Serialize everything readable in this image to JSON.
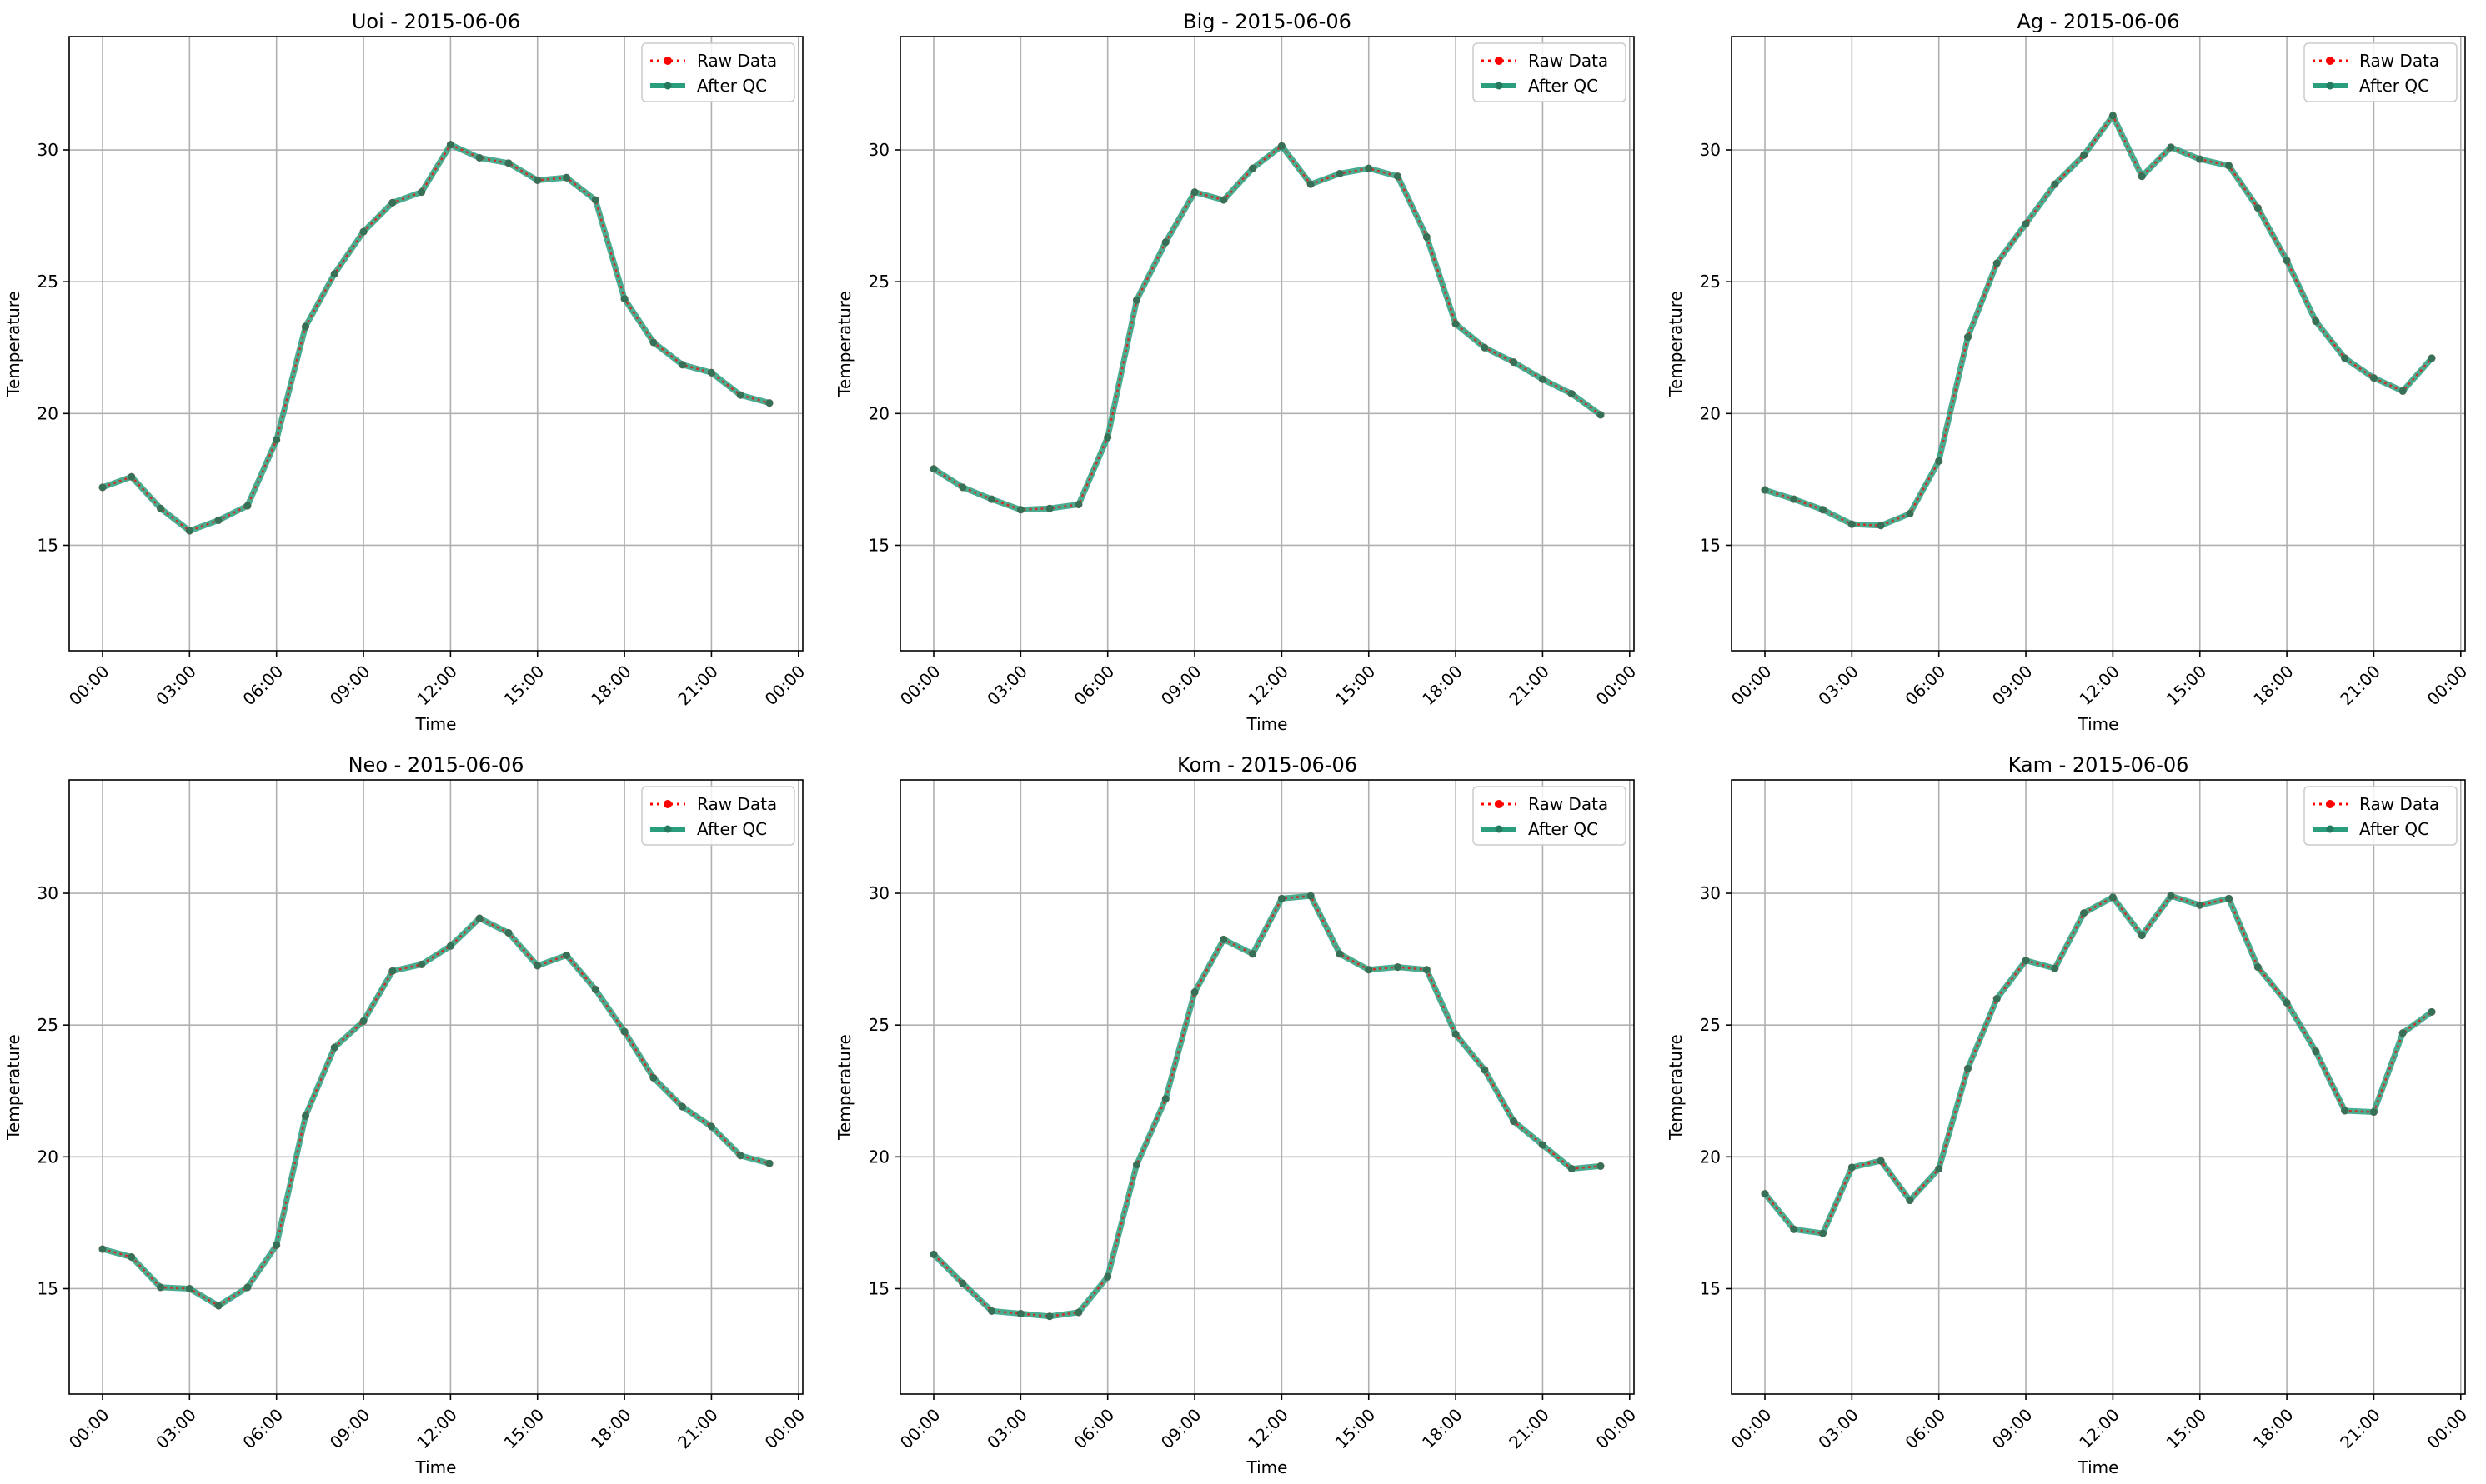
{
  "colors": {
    "raw": "#ff0000",
    "qc": "#2a9d7c",
    "grid": "#b0b0b0",
    "axes": "#000000"
  },
  "legend": {
    "raw_label": "Raw Data",
    "qc_label": "After QC",
    "placement": "upper right"
  },
  "chart_data": [
    {
      "type": "line",
      "title": "Uoi - 2015-06-06",
      "xlabel": "Time",
      "ylabel": "Temperature",
      "x": [
        "00:00",
        "01:00",
        "02:00",
        "03:00",
        "04:00",
        "05:00",
        "06:00",
        "07:00",
        "08:00",
        "09:00",
        "10:00",
        "11:00",
        "12:00",
        "13:00",
        "14:00",
        "15:00",
        "16:00",
        "17:00",
        "18:00",
        "19:00",
        "20:00",
        "21:00",
        "22:00",
        "23:00"
      ],
      "xticks": [
        "00:00",
        "03:00",
        "06:00",
        "09:00",
        "12:00",
        "15:00",
        "18:00",
        "21:00",
        "00:00"
      ],
      "yticks": [
        15,
        20,
        25,
        30
      ],
      "ylim": [
        11,
        34.3
      ],
      "grid": true,
      "series": [
        {
          "name": "Raw Data",
          "values": [
            17.2,
            17.6,
            16.4,
            15.55,
            15.95,
            16.5,
            19.0,
            23.3,
            25.3,
            26.9,
            28.0,
            28.4,
            30.2,
            29.7,
            29.5,
            28.85,
            28.95,
            28.1,
            24.35,
            22.7,
            21.85,
            21.55,
            20.7,
            20.4
          ]
        },
        {
          "name": "After QC",
          "values": [
            17.2,
            17.6,
            16.4,
            15.55,
            15.95,
            16.5,
            19.0,
            23.3,
            25.3,
            26.9,
            28.0,
            28.4,
            30.2,
            29.7,
            29.5,
            28.85,
            28.95,
            28.1,
            24.35,
            22.7,
            21.85,
            21.55,
            20.7,
            20.4
          ]
        }
      ]
    },
    {
      "type": "line",
      "title": "Big - 2015-06-06",
      "xlabel": "Time",
      "ylabel": "Temperature",
      "x": [
        "00:00",
        "01:00",
        "02:00",
        "03:00",
        "04:00",
        "05:00",
        "06:00",
        "07:00",
        "08:00",
        "09:00",
        "10:00",
        "11:00",
        "12:00",
        "13:00",
        "14:00",
        "15:00",
        "16:00",
        "17:00",
        "18:00",
        "19:00",
        "20:00",
        "21:00",
        "22:00",
        "23:00"
      ],
      "xticks": [
        "00:00",
        "03:00",
        "06:00",
        "09:00",
        "12:00",
        "15:00",
        "18:00",
        "21:00",
        "00:00"
      ],
      "yticks": [
        15,
        20,
        25,
        30
      ],
      "ylim": [
        11,
        34.3
      ],
      "grid": true,
      "series": [
        {
          "name": "Raw Data",
          "values": [
            17.9,
            17.2,
            16.75,
            16.35,
            16.4,
            16.55,
            19.1,
            24.3,
            26.5,
            28.4,
            28.1,
            29.3,
            30.15,
            28.7,
            29.1,
            29.3,
            29.0,
            26.7,
            23.4,
            22.5,
            21.95,
            21.3,
            20.75,
            19.95
          ]
        },
        {
          "name": "After QC",
          "values": [
            17.9,
            17.2,
            16.75,
            16.35,
            16.4,
            16.55,
            19.1,
            24.3,
            26.5,
            28.4,
            28.1,
            29.3,
            30.15,
            28.7,
            29.1,
            29.3,
            29.0,
            26.7,
            23.4,
            22.5,
            21.95,
            21.3,
            20.75,
            19.95
          ]
        }
      ]
    },
    {
      "type": "line",
      "title": "Ag - 2015-06-06",
      "xlabel": "Time",
      "ylabel": "Temperature",
      "x": [
        "00:00",
        "01:00",
        "02:00",
        "03:00",
        "04:00",
        "05:00",
        "06:00",
        "07:00",
        "08:00",
        "09:00",
        "10:00",
        "11:00",
        "12:00",
        "13:00",
        "14:00",
        "15:00",
        "16:00",
        "17:00",
        "18:00",
        "19:00",
        "20:00",
        "21:00",
        "22:00",
        "23:00"
      ],
      "xticks": [
        "00:00",
        "03:00",
        "06:00",
        "09:00",
        "12:00",
        "15:00",
        "18:00",
        "21:00",
        "00:00"
      ],
      "yticks": [
        15,
        20,
        25,
        30
      ],
      "ylim": [
        11,
        34.3
      ],
      "grid": true,
      "series": [
        {
          "name": "Raw Data",
          "values": [
            17.1,
            16.75,
            16.35,
            15.8,
            15.75,
            16.2,
            18.2,
            22.9,
            25.7,
            27.2,
            28.7,
            29.8,
            31.3,
            29.0,
            30.1,
            29.65,
            29.4,
            27.8,
            25.8,
            23.5,
            22.1,
            21.35,
            20.85,
            22.1
          ]
        },
        {
          "name": "After QC",
          "values": [
            17.1,
            16.75,
            16.35,
            15.8,
            15.75,
            16.2,
            18.2,
            22.9,
            25.7,
            27.2,
            28.7,
            29.8,
            31.3,
            29.0,
            30.1,
            29.65,
            29.4,
            27.8,
            25.8,
            23.5,
            22.1,
            21.35,
            20.85,
            22.1
          ]
        }
      ]
    },
    {
      "type": "line",
      "title": "Neo - 2015-06-06",
      "xlabel": "Time",
      "ylabel": "Temperature",
      "x": [
        "00:00",
        "01:00",
        "02:00",
        "03:00",
        "04:00",
        "05:00",
        "06:00",
        "07:00",
        "08:00",
        "09:00",
        "10:00",
        "11:00",
        "12:00",
        "13:00",
        "14:00",
        "15:00",
        "16:00",
        "17:00",
        "18:00",
        "19:00",
        "20:00",
        "21:00",
        "22:00",
        "23:00"
      ],
      "xticks": [
        "00:00",
        "03:00",
        "06:00",
        "09:00",
        "12:00",
        "15:00",
        "18:00",
        "21:00",
        "00:00"
      ],
      "yticks": [
        15,
        20,
        25,
        30
      ],
      "ylim": [
        11,
        34.3
      ],
      "grid": true,
      "series": [
        {
          "name": "Raw Data",
          "values": [
            16.5,
            16.2,
            15.05,
            15.0,
            14.35,
            15.05,
            16.65,
            21.55,
            24.15,
            25.15,
            27.05,
            27.3,
            28.0,
            29.05,
            28.5,
            27.25,
            27.65,
            26.35,
            24.75,
            23.0,
            21.9,
            21.15,
            20.05,
            19.75
          ]
        },
        {
          "name": "After QC",
          "values": [
            16.5,
            16.2,
            15.05,
            15.0,
            14.35,
            15.05,
            16.65,
            21.55,
            24.15,
            25.15,
            27.05,
            27.3,
            28.0,
            29.05,
            28.5,
            27.25,
            27.65,
            26.35,
            24.75,
            23.0,
            21.9,
            21.15,
            20.05,
            19.75
          ]
        }
      ]
    },
    {
      "type": "line",
      "title": "Kom - 2015-06-06",
      "xlabel": "Time",
      "ylabel": "Temperature",
      "x": [
        "00:00",
        "01:00",
        "02:00",
        "03:00",
        "04:00",
        "05:00",
        "06:00",
        "07:00",
        "08:00",
        "09:00",
        "10:00",
        "11:00",
        "12:00",
        "13:00",
        "14:00",
        "15:00",
        "16:00",
        "17:00",
        "18:00",
        "19:00",
        "20:00",
        "21:00",
        "22:00",
        "23:00"
      ],
      "xticks": [
        "00:00",
        "03:00",
        "06:00",
        "09:00",
        "12:00",
        "15:00",
        "18:00",
        "21:00",
        "00:00"
      ],
      "yticks": [
        15,
        20,
        25,
        30
      ],
      "ylim": [
        11,
        34.3
      ],
      "grid": true,
      "series": [
        {
          "name": "Raw Data",
          "values": [
            16.3,
            15.2,
            14.15,
            14.05,
            13.95,
            14.1,
            15.45,
            19.7,
            22.2,
            26.25,
            28.25,
            27.7,
            29.8,
            29.9,
            27.7,
            27.1,
            27.2,
            27.1,
            24.65,
            23.3,
            21.35,
            20.45,
            19.55,
            19.65
          ]
        },
        {
          "name": "After QC",
          "values": [
            16.3,
            15.2,
            14.15,
            14.05,
            13.95,
            14.1,
            15.45,
            19.7,
            22.2,
            26.25,
            28.25,
            27.7,
            29.8,
            29.9,
            27.7,
            27.1,
            27.2,
            27.1,
            24.65,
            23.3,
            21.35,
            20.45,
            19.55,
            19.65
          ]
        }
      ]
    },
    {
      "type": "line",
      "title": "Kam - 2015-06-06",
      "xlabel": "Time",
      "ylabel": "Temperature",
      "x": [
        "00:00",
        "01:00",
        "02:00",
        "03:00",
        "04:00",
        "05:00",
        "06:00",
        "07:00",
        "08:00",
        "09:00",
        "10:00",
        "11:00",
        "12:00",
        "13:00",
        "14:00",
        "15:00",
        "16:00",
        "17:00",
        "18:00",
        "19:00",
        "20:00",
        "21:00",
        "22:00",
        "23:00"
      ],
      "xticks": [
        "00:00",
        "03:00",
        "06:00",
        "09:00",
        "12:00",
        "15:00",
        "18:00",
        "21:00",
        "00:00"
      ],
      "yticks": [
        15,
        20,
        25,
        30
      ],
      "ylim": [
        11,
        34.3
      ],
      "grid": true,
      "series": [
        {
          "name": "Raw Data",
          "values": [
            18.6,
            17.25,
            17.1,
            19.6,
            19.85,
            18.35,
            19.55,
            23.35,
            26.0,
            27.45,
            27.15,
            29.25,
            29.85,
            28.4,
            29.9,
            29.55,
            29.8,
            27.2,
            25.85,
            24.0,
            21.75,
            21.7,
            24.7,
            25.5
          ]
        },
        {
          "name": "After QC",
          "values": [
            18.6,
            17.25,
            17.1,
            19.6,
            19.85,
            18.35,
            19.55,
            23.35,
            26.0,
            27.45,
            27.15,
            29.25,
            29.85,
            28.4,
            29.9,
            29.55,
            29.8,
            27.2,
            25.85,
            24.0,
            21.75,
            21.7,
            24.7,
            25.5
          ]
        }
      ]
    }
  ]
}
